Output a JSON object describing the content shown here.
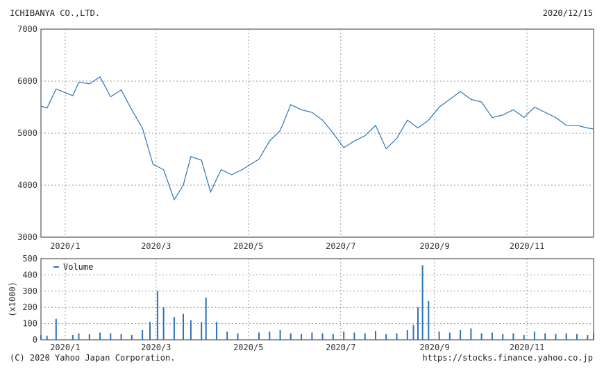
{
  "header": {
    "company": "ICHIBANYA CO.,LTD.",
    "date": "2020/12/15"
  },
  "footer": {
    "copyright": "(C) 2020 Yahoo Japan Corporation.",
    "url": "https://stocks.finance.yahoo.co.jp"
  },
  "colors": {
    "line": "#2b72b8",
    "grid": "#9a9a9a",
    "frame": "#333333"
  },
  "chart_data": [
    {
      "type": "line",
      "name": "price",
      "title": "",
      "xlabel": "",
      "ylabel": "",
      "ylim": [
        3000,
        7000
      ],
      "yticks": [
        3000,
        4000,
        5000,
        6000,
        7000
      ],
      "x_tick_labels": [
        "2020/1",
        "2020/3",
        "2020/5",
        "2020/7",
        "2020/9",
        "2020/11"
      ],
      "grid": true,
      "series": [
        {
          "x": [
            "2019/12/16",
            "2019/12/20",
            "2019/12/26",
            "2020/1/6",
            "2020/1/10",
            "2020/1/17",
            "2020/1/24",
            "2020/1/31",
            "2020/2/7",
            "2020/2/14",
            "2020/2/21",
            "2020/2/28",
            "2020/3/6",
            "2020/3/13",
            "2020/3/19",
            "2020/3/24",
            "2020/3/31",
            "2020/4/6",
            "2020/4/13",
            "2020/4/20",
            "2020/4/27",
            "2020/5/8",
            "2020/5/15",
            "2020/5/22",
            "2020/5/29",
            "2020/6/5",
            "2020/6/12",
            "2020/6/19",
            "2020/6/26",
            "2020/7/3",
            "2020/7/10",
            "2020/7/17",
            "2020/7/24",
            "2020/7/31",
            "2020/8/7",
            "2020/8/14",
            "2020/8/21",
            "2020/8/28",
            "2020/9/4",
            "2020/9/11",
            "2020/9/18",
            "2020/9/25",
            "2020/10/2",
            "2020/10/9",
            "2020/10/16",
            "2020/10/23",
            "2020/10/30",
            "2020/11/6",
            "2020/11/13",
            "2020/11/20",
            "2020/11/27",
            "2020/12/4",
            "2020/12/11",
            "2020/12/15"
          ],
          "y": [
            5520,
            5480,
            5850,
            5720,
            5980,
            5950,
            6080,
            5700,
            5830,
            5450,
            5100,
            4400,
            4300,
            3720,
            4000,
            4550,
            4480,
            3870,
            4300,
            4200,
            4300,
            4500,
            4850,
            5050,
            5550,
            5450,
            5400,
            5250,
            5000,
            4720,
            4850,
            4950,
            5150,
            4700,
            4900,
            5250,
            5100,
            5250,
            5500,
            5650,
            5800,
            5650,
            5600,
            5300,
            5350,
            5450,
            5300,
            5500,
            5400,
            5300,
            5150,
            5150,
            5100,
            5080
          ]
        }
      ]
    },
    {
      "type": "bar",
      "name": "volume",
      "title": "",
      "xlabel": "",
      "ylabel": "(x1000)",
      "ylim": [
        0,
        500
      ],
      "yticks": [
        0,
        100,
        200,
        300,
        400,
        500
      ],
      "x_tick_labels": [
        "2020/1",
        "2020/3",
        "2020/5",
        "2020/7",
        "2020/9",
        "2020/11"
      ],
      "grid": true,
      "legend": {
        "position": "top-left",
        "entries": [
          "Volume"
        ]
      },
      "series": [
        {
          "name": "Volume",
          "x": [
            "2019/12/16",
            "2019/12/20",
            "2019/12/26",
            "2020/1/6",
            "2020/1/10",
            "2020/1/17",
            "2020/1/24",
            "2020/1/31",
            "2020/2/7",
            "2020/2/14",
            "2020/2/21",
            "2020/2/26",
            "2020/3/2",
            "2020/3/6",
            "2020/3/13",
            "2020/3/19",
            "2020/3/24",
            "2020/3/31",
            "2020/4/3",
            "2020/4/10",
            "2020/4/17",
            "2020/4/24",
            "2020/5/8",
            "2020/5/15",
            "2020/5/22",
            "2020/5/29",
            "2020/6/5",
            "2020/6/12",
            "2020/6/19",
            "2020/6/26",
            "2020/7/3",
            "2020/7/10",
            "2020/7/17",
            "2020/7/24",
            "2020/7/31",
            "2020/8/7",
            "2020/8/14",
            "2020/8/18",
            "2020/8/21",
            "2020/8/24",
            "2020/8/28",
            "2020/9/4",
            "2020/9/11",
            "2020/9/18",
            "2020/9/25",
            "2020/10/2",
            "2020/10/9",
            "2020/10/16",
            "2020/10/23",
            "2020/10/30",
            "2020/11/6",
            "2020/11/13",
            "2020/11/20",
            "2020/11/27",
            "2020/12/4",
            "2020/12/11",
            "2020/12/15"
          ],
          "values": [
            30,
            25,
            130,
            30,
            40,
            35,
            45,
            40,
            35,
            30,
            60,
            110,
            300,
            200,
            140,
            160,
            120,
            110,
            260,
            110,
            50,
            40,
            45,
            50,
            60,
            40,
            35,
            45,
            40,
            35,
            50,
            45,
            40,
            55,
            35,
            40,
            60,
            90,
            200,
            460,
            240,
            50,
            45,
            60,
            70,
            40,
            45,
            35,
            40,
            30,
            50,
            40,
            35,
            40,
            35,
            30,
            40
          ]
        }
      ]
    }
  ]
}
